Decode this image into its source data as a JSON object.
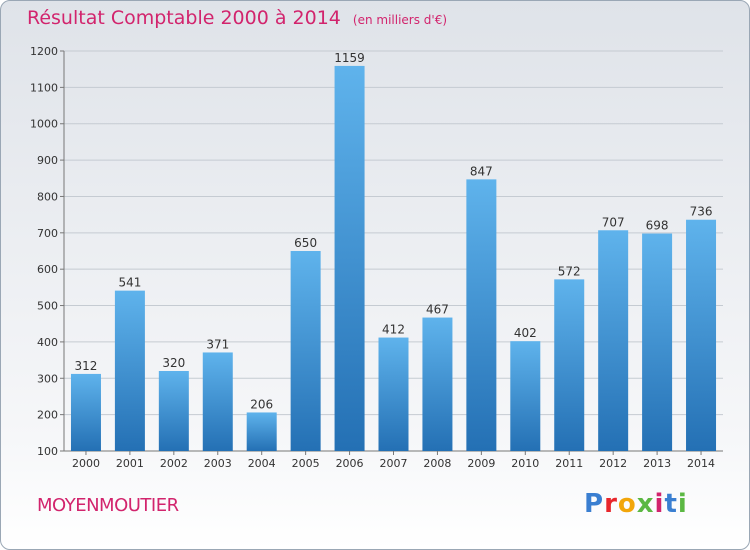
{
  "header": {
    "title": "Résultat Comptable 2000 à 2014",
    "subtitle": "(en milliers d'€)"
  },
  "footer": {
    "commune": "MOYENMOUTIER",
    "logo_text": "Proxiti"
  },
  "colors": {
    "title": "#d2246d",
    "bar_top": "#5fb3ec",
    "bar_bottom": "#2470b4",
    "logo": [
      "#3a7fd1",
      "#e8262b",
      "#f2a60a",
      "#5bb843",
      "#d2246d",
      "#3a7fd1",
      "#5bb843"
    ]
  },
  "chart_data": {
    "type": "bar",
    "categories": [
      "2000",
      "2001",
      "2002",
      "2003",
      "2004",
      "2005",
      "2006",
      "2007",
      "2008",
      "2009",
      "2010",
      "2011",
      "2012",
      "2013",
      "2014"
    ],
    "values": [
      312,
      541,
      320,
      371,
      206,
      650,
      1159,
      412,
      467,
      847,
      402,
      572,
      707,
      698,
      736
    ],
    "ylim": [
      100,
      1200
    ],
    "yticks": [
      100,
      200,
      300,
      400,
      500,
      600,
      700,
      800,
      900,
      1000,
      1100,
      1200
    ],
    "grid": true,
    "title": "Résultat Comptable 2000 à 2014",
    "subtitle": "(en milliers d'€)"
  }
}
